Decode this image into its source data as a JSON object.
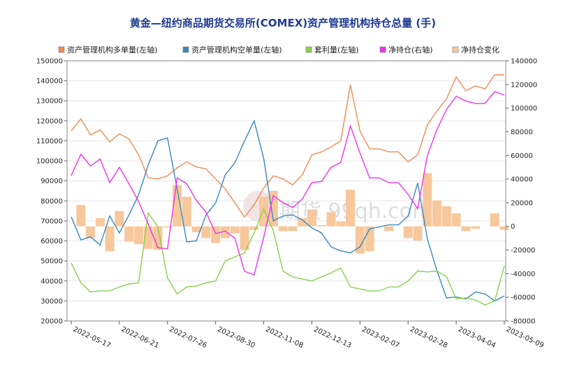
{
  "chart_data": {
    "type": "line",
    "title": "黄金—纽约商品期货交易所(COMEX)资产管理机构持仓总量 (手)",
    "watermark": "期货 99qh.com",
    "x_tick_labels": [
      "2022-05-17",
      "2022-06-21",
      "2022-07-26",
      "2022-08-30",
      "2022-11-08",
      "2022-12-13",
      "2023-02-07",
      "2023-02-28",
      "2023-04-04",
      "2023-05-09"
    ],
    "y_left": {
      "min": 20000,
      "max": 150000,
      "ticks": [
        "20000",
        "30000",
        "40000",
        "50000",
        "60000",
        "70000",
        "80000",
        "90000",
        "100000",
        "110000",
        "120000",
        "130000",
        "140000",
        "150000"
      ]
    },
    "y_right": {
      "min": -80000,
      "max": 140000,
      "ticks": [
        "-80000",
        "-60000",
        "-40000",
        "-20000",
        "0",
        "20000",
        "40000",
        "60000",
        "80000",
        "100000",
        "120000",
        "140000"
      ]
    },
    "legend": [
      {
        "label": "资产管理机构多单量(左轴)",
        "color": "#f08b55"
      },
      {
        "label": "资产管理机构空单量(左轴)",
        "color": "#3a87c0"
      },
      {
        "label": "套利量(左轴)",
        "color": "#8ccf4d"
      },
      {
        "label": "净持仓(右轴)",
        "color": "#ee33ee"
      },
      {
        "label": "净持仓变化",
        "color": "#f7c89c"
      }
    ],
    "x_index": [
      0,
      1,
      2,
      3,
      4,
      5,
      6,
      7,
      8,
      9,
      10,
      11,
      12,
      13,
      14,
      15,
      16,
      17,
      18,
      19,
      20,
      21,
      22,
      23,
      24,
      25,
      26,
      27,
      28,
      29,
      30,
      31,
      32,
      33,
      34,
      35,
      36,
      37,
      38,
      39,
      40,
      41,
      42,
      43,
      44,
      45,
      46,
      47,
      48,
      49,
      50,
      51,
      52,
      53,
      54,
      55,
      56,
      57,
      58,
      59,
      60,
      61,
      62,
      63,
      64,
      65,
      66,
      67,
      68,
      69,
      70,
      71,
      72,
      73,
      74,
      75,
      76,
      77,
      78,
      79,
      80,
      81,
      82,
      83,
      84,
      85,
      86,
      87,
      88,
      89
    ],
    "series": [
      {
        "name": "资产管理机构多单量(左轴)",
        "axis": "left",
        "color": "#f08b55",
        "x": [
          0,
          2,
          4,
          6,
          8,
          10,
          12,
          14,
          16,
          18,
          20,
          22,
          24,
          26,
          28,
          30,
          32,
          34,
          36,
          38,
          40,
          42,
          44,
          46,
          48,
          50,
          52,
          54,
          56,
          58,
          60,
          62,
          64,
          66,
          68,
          70,
          72,
          74,
          76,
          78,
          80,
          82,
          84,
          86,
          88,
          90
        ],
        "values": [
          115000,
          121000,
          113000,
          115500,
          109500,
          113500,
          111000,
          103000,
          91500,
          91000,
          92500,
          96500,
          99500,
          97000,
          96000,
          91000,
          86000,
          79000,
          72000,
          78000,
          86500,
          92500,
          91000,
          88000,
          93000,
          103000,
          104500,
          107000,
          110000,
          138000,
          115000,
          106000,
          106000,
          104500,
          104500,
          99500,
          103000,
          118000,
          125000,
          131000,
          142000,
          135000,
          137500,
          136000,
          143000,
          143000
        ]
      },
      {
        "name": "资产管理机构空单量(左轴)",
        "axis": "left",
        "color": "#3a87c0",
        "x": [
          0,
          2,
          4,
          6,
          8,
          10,
          12,
          14,
          16,
          18,
          20,
          22,
          24,
          26,
          28,
          30,
          32,
          34,
          36,
          38,
          40,
          42,
          44,
          46,
          48,
          50,
          52,
          54,
          56,
          58,
          60,
          62,
          64,
          66,
          68,
          70,
          72,
          74,
          76,
          78,
          80,
          82,
          84,
          86,
          88,
          90
        ],
        "values": [
          72000,
          60500,
          62000,
          58000,
          72500,
          64000,
          73000,
          83000,
          98000,
          110000,
          111500,
          86000,
          59500,
          60000,
          73000,
          79000,
          93000,
          99000,
          110000,
          120000,
          101000,
          70000,
          72500,
          73000,
          70500,
          66500,
          64000,
          57000,
          55000,
          54000,
          57000,
          66000,
          67000,
          68000,
          68000,
          72500,
          89000,
          61000,
          45000,
          31500,
          32000,
          31000,
          34500,
          33500,
          30000,
          32500
        ]
      },
      {
        "name": "套利量(左轴)",
        "axis": "left",
        "color": "#8ccf4d",
        "x": [
          0,
          2,
          4,
          6,
          8,
          10,
          12,
          14,
          16,
          18,
          20,
          22,
          24,
          26,
          28,
          30,
          32,
          34,
          36,
          38,
          40,
          42,
          44,
          46,
          48,
          50,
          52,
          54,
          56,
          58,
          60,
          62,
          64,
          66,
          68,
          70,
          72,
          74,
          76,
          78,
          80,
          82,
          84,
          86,
          88,
          90
        ],
        "values": [
          49000,
          39000,
          34500,
          35000,
          35000,
          37000,
          38500,
          39000,
          74000,
          67000,
          41500,
          33500,
          37000,
          37500,
          39000,
          40000,
          50000,
          52000,
          54000,
          64000,
          76000,
          65000,
          45000,
          42000,
          41000,
          40000,
          42000,
          44000,
          46500,
          37000,
          36000,
          35000,
          35000,
          37000,
          37000,
          40000,
          45000,
          44500,
          45000,
          42000,
          31000,
          31500,
          30500,
          28000,
          30000,
          47500
        ]
      },
      {
        "name": "净持仓(右轴)",
        "axis": "right",
        "color": "#ee33ee",
        "x": [
          0,
          2,
          4,
          6,
          8,
          10,
          12,
          14,
          16,
          18,
          20,
          22,
          24,
          26,
          28,
          30,
          32,
          34,
          36,
          38,
          40,
          42,
          44,
          46,
          48,
          50,
          52,
          54,
          56,
          58,
          60,
          62,
          64,
          66,
          68,
          70,
          72,
          74,
          76,
          78,
          80,
          82,
          84,
          86,
          88,
          90
        ],
        "values": [
          43000,
          61000,
          51000,
          57000,
          37000,
          50000,
          36000,
          21000,
          2000,
          -18000,
          -19000,
          41000,
          36000,
          22000,
          12000,
          -6000,
          -4000,
          -10000,
          -38000,
          -41000,
          -9000,
          26000,
          20000,
          16000,
          23000,
          37000,
          38000,
          50000,
          54000,
          85000,
          62000,
          41000,
          41000,
          37000,
          37000,
          27000,
          15000,
          60000,
          82000,
          99000,
          110000,
          106000,
          104000,
          104000,
          114000,
          111000
        ]
      },
      {
        "name": "净持仓变化",
        "axis": "right",
        "type": "bar",
        "color": "#f7c89c",
        "x": [
          0,
          2,
          4,
          6,
          8,
          10,
          12,
          14,
          16,
          18,
          20,
          22,
          24,
          26,
          28,
          30,
          32,
          34,
          36,
          38,
          40,
          42,
          44,
          46,
          48,
          50,
          52,
          54,
          56,
          58,
          60,
          62,
          64,
          66,
          68,
          70,
          72,
          74,
          76,
          78,
          80,
          82,
          84,
          86,
          88,
          90
        ],
        "values": [
          0,
          18000,
          -10000,
          7000,
          -21000,
          13000,
          -13000,
          -15000,
          -19000,
          -20000,
          -1000,
          35000,
          25000,
          -5000,
          -10000,
          -14000,
          -10000,
          -6000,
          -20000,
          -3000,
          25000,
          30000,
          -4000,
          -4000,
          7000,
          14000,
          1000,
          12000,
          4000,
          31000,
          -23000,
          -21000,
          0,
          -4000,
          0,
          -10000,
          -12000,
          45000,
          22000,
          17000,
          11000,
          -4000,
          -2000,
          0,
          11000,
          -3000
        ]
      }
    ]
  }
}
